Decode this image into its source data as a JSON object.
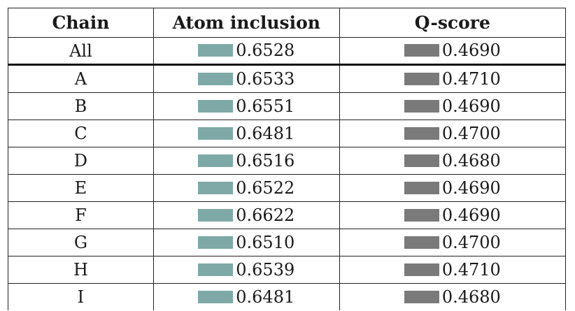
{
  "table": {
    "headers": [
      "Chain",
      "Atom inclusion",
      "Q-score"
    ],
    "colors": {
      "atom_bar": "#7ea9a6",
      "qscore_bar": "#7a7a7a"
    },
    "rows": [
      {
        "chain": "All",
        "atom_inclusion": "0.6528",
        "q_score": "0.4690"
      },
      {
        "chain": "A",
        "atom_inclusion": "0.6533",
        "q_score": "0.4710"
      },
      {
        "chain": "B",
        "atom_inclusion": "0.6551",
        "q_score": "0.4690"
      },
      {
        "chain": "C",
        "atom_inclusion": "0.6481",
        "q_score": "0.4700"
      },
      {
        "chain": "D",
        "atom_inclusion": "0.6516",
        "q_score": "0.4680"
      },
      {
        "chain": "E",
        "atom_inclusion": "0.6522",
        "q_score": "0.4690"
      },
      {
        "chain": "F",
        "atom_inclusion": "0.6622",
        "q_score": "0.4690"
      },
      {
        "chain": "G",
        "atom_inclusion": "0.6510",
        "q_score": "0.4700"
      },
      {
        "chain": "H",
        "atom_inclusion": "0.6539",
        "q_score": "0.4710"
      },
      {
        "chain": "I",
        "atom_inclusion": "0.6481",
        "q_score": "0.4680"
      }
    ]
  }
}
